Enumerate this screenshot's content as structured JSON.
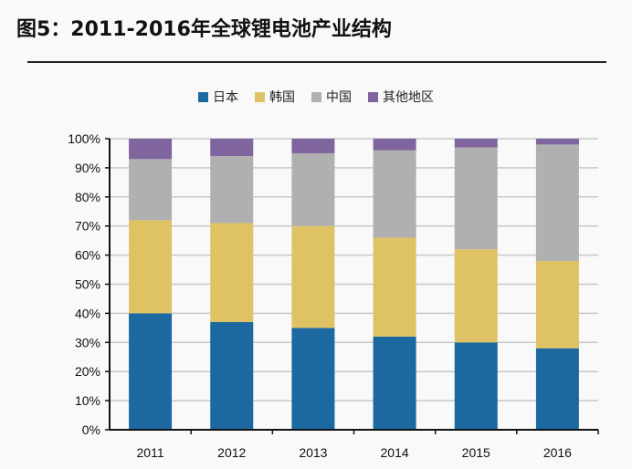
{
  "title": "图5：2011-2016年全球锂电池产业结构",
  "chart_data": {
    "type": "bar",
    "stacked": true,
    "title": "图5：2011-2016年全球锂电池产业结构",
    "categories": [
      "2011",
      "2012",
      "2013",
      "2014",
      "2015",
      "2016"
    ],
    "series": [
      {
        "name": "日本",
        "color": "#1b69a0",
        "values": [
          40,
          37,
          35,
          32,
          30,
          28
        ]
      },
      {
        "name": "韩国",
        "color": "#dfc264",
        "values": [
          32,
          34,
          35,
          34,
          32,
          30
        ]
      },
      {
        "name": "中国",
        "color": "#b0b0b0",
        "values": [
          21,
          23,
          25,
          30,
          35,
          40
        ]
      },
      {
        "name": "其他地区",
        "color": "#7f649e",
        "values": [
          7,
          6,
          5,
          4,
          3,
          2
        ]
      }
    ],
    "ylim": [
      0,
      100
    ],
    "yticks": [
      "0%",
      "10%",
      "20%",
      "30%",
      "40%",
      "50%",
      "60%",
      "70%",
      "80%",
      "90%",
      "100%"
    ],
    "grid": true,
    "legend": "top"
  }
}
